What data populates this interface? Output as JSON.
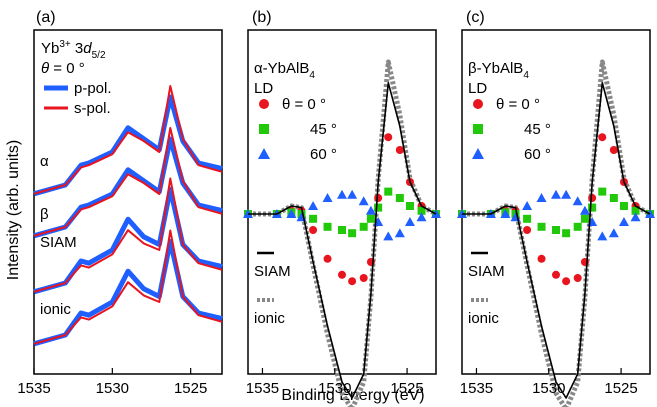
{
  "figure": {
    "ylabel": "Intensity (arb. units)",
    "xlabel": "Binding Energy (eV)"
  },
  "chart_data": [
    {
      "type": "line",
      "panel_label": "(a)",
      "title_prefix": "Yb",
      "title_sup": "3+",
      "title_mid": " 3",
      "title_italic": "d",
      "title_sub": "5/2",
      "theta_var": "θ",
      "theta_rest": " = 0 °",
      "legend": [
        {
          "label": "p-pol.",
          "color": "#1f5fff"
        },
        {
          "label": "s-pol.",
          "color": "#e8141e"
        }
      ],
      "row_labels": [
        "α",
        "β",
        "SIAM",
        "ionic"
      ],
      "xlim": [
        1535,
        1523
      ],
      "xticks": [
        1535,
        1530,
        1525
      ],
      "series": [
        {
          "label": "α",
          "p_pol": {
            "x": [
              1535,
              1533,
              1532,
              1531.5,
              1530,
              1529,
              1528,
              1527,
              1526.3,
              1525.5,
              1524.5,
              1523
            ],
            "y": [
              0.02,
              0.1,
              0.28,
              0.3,
              0.4,
              0.62,
              0.52,
              0.42,
              0.9,
              0.5,
              0.3,
              0.25
            ]
          },
          "s_pol": {
            "x": [
              1535,
              1533,
              1532,
              1531.5,
              1530,
              1529,
              1528,
              1527,
              1526.3,
              1525.5,
              1524.5,
              1523
            ],
            "y": [
              0.02,
              0.1,
              0.26,
              0.28,
              0.38,
              0.58,
              0.5,
              0.4,
              1.0,
              0.52,
              0.28,
              0.22
            ]
          }
        },
        {
          "label": "β",
          "p_pol": {
            "x": [
              1535,
              1533,
              1532,
              1531.5,
              1530,
              1529,
              1528,
              1527,
              1526.3,
              1525.5,
              1524.5,
              1523
            ],
            "y": [
              0.02,
              0.1,
              0.28,
              0.3,
              0.4,
              0.62,
              0.52,
              0.42,
              0.9,
              0.5,
              0.3,
              0.25
            ]
          },
          "s_pol": {
            "x": [
              1535,
              1533,
              1532,
              1531.5,
              1530,
              1529,
              1528,
              1527,
              1526.3,
              1525.5,
              1524.5,
              1523
            ],
            "y": [
              0.02,
              0.1,
              0.26,
              0.28,
              0.38,
              0.58,
              0.5,
              0.4,
              1.0,
              0.52,
              0.28,
              0.22
            ]
          }
        },
        {
          "label": "SIAM",
          "p_pol": {
            "x": [
              1535,
              1533,
              1532,
              1531.5,
              1530,
              1529,
              1528,
              1527,
              1526.3,
              1525.5,
              1524.5,
              1523
            ],
            "y": [
              0.02,
              0.1,
              0.3,
              0.28,
              0.4,
              0.68,
              0.52,
              0.45,
              0.95,
              0.45,
              0.3,
              0.25
            ]
          },
          "s_pol": {
            "x": [
              1535,
              1533,
              1532,
              1531.5,
              1530,
              1529,
              1528,
              1527,
              1526.3,
              1525.5,
              1524.5,
              1523
            ],
            "y": [
              0.02,
              0.1,
              0.26,
              0.24,
              0.36,
              0.58,
              0.46,
              0.4,
              1.05,
              0.45,
              0.28,
              0.22
            ]
          }
        },
        {
          "label": "ionic",
          "p_pol": {
            "x": [
              1535,
              1533,
              1532,
              1531.5,
              1530,
              1529,
              1528,
              1527,
              1526.3,
              1525.5,
              1524.5,
              1523
            ],
            "y": [
              0.02,
              0.1,
              0.3,
              0.28,
              0.4,
              0.68,
              0.52,
              0.45,
              0.95,
              0.45,
              0.3,
              0.25
            ]
          },
          "s_pol": {
            "x": [
              1535,
              1533,
              1532,
              1531.5,
              1530,
              1529,
              1528,
              1527,
              1526.3,
              1525.5,
              1524.5,
              1523
            ],
            "y": [
              0.02,
              0.1,
              0.26,
              0.24,
              0.36,
              0.58,
              0.46,
              0.4,
              1.05,
              0.45,
              0.28,
              0.22
            ]
          }
        }
      ]
    },
    {
      "type": "scatter",
      "panel_label": "(b)",
      "title_main": "α-YbAlB",
      "title_sub": "4",
      "subtitle": "LD",
      "legend": [
        {
          "label": "θ = 0 °",
          "color": "#e8141e",
          "marker": "circle"
        },
        {
          "label": "45 °",
          "color": "#22c80a",
          "marker": "square"
        },
        {
          "label": "60 °",
          "color": "#1f5fff",
          "marker": "triangle"
        }
      ],
      "line_legend": [
        {
          "label": "SIAM",
          "style": "solid"
        },
        {
          "label": "ionic",
          "style": "dotted"
        }
      ],
      "xlim": [
        1536,
        1523
      ],
      "xticks": [
        1535,
        1530,
        1525
      ],
      "ylim": [
        -1.2,
        1.05
      ],
      "series": [
        {
          "name": "θ = 0 °",
          "x": [
            1536,
            1534,
            1533,
            1532.3,
            1531.5,
            1530.5,
            1529.5,
            1528.8,
            1528,
            1527.5,
            1527,
            1526.3,
            1525.5,
            1524.8,
            1524,
            1523
          ],
          "y": [
            0.0,
            0.0,
            0.02,
            0.02,
            -0.1,
            -0.28,
            -0.38,
            -0.42,
            -0.4,
            -0.3,
            0.1,
            0.48,
            0.4,
            0.2,
            0.05,
            0.0
          ]
        },
        {
          "name": "45 °",
          "x": [
            1536,
            1534,
            1533,
            1532.3,
            1531.5,
            1530.5,
            1529.5,
            1528.8,
            1528,
            1527.5,
            1527,
            1526.3,
            1525.5,
            1524.8,
            1524,
            1523
          ],
          "y": [
            0.0,
            0.0,
            0.01,
            0.0,
            -0.03,
            -0.08,
            -0.1,
            -0.12,
            -0.08,
            -0.03,
            0.04,
            0.14,
            0.1,
            0.05,
            0.02,
            0.0
          ]
        },
        {
          "name": "60 °",
          "x": [
            1536,
            1534,
            1533,
            1532.3,
            1531.5,
            1530.5,
            1529.5,
            1528.8,
            1528,
            1527.5,
            1527,
            1526.3,
            1525.5,
            1524.8,
            1524,
            1523
          ],
          "y": [
            0.0,
            0.0,
            0.0,
            -0.02,
            0.05,
            0.1,
            0.12,
            0.12,
            0.08,
            0.02,
            -0.05,
            -0.14,
            -0.12,
            -0.05,
            -0.02,
            0.0
          ]
        }
      ],
      "lines": [
        {
          "name": "SIAM",
          "x": [
            1536,
            1534,
            1533,
            1532.3,
            1531.5,
            1530.5,
            1529.5,
            1528.8,
            1528,
            1527.5,
            1527,
            1526.3,
            1525.5,
            1524.8,
            1524,
            1523
          ],
          "y": [
            0.0,
            0.0,
            0.05,
            0.04,
            -0.3,
            -0.7,
            -1.05,
            -1.15,
            -1.0,
            -0.5,
            0.2,
            0.82,
            0.55,
            0.2,
            0.05,
            0.0
          ]
        },
        {
          "name": "ionic",
          "x": [
            1536,
            1534,
            1533,
            1532.3,
            1531.5,
            1530.5,
            1529.5,
            1528.8,
            1528,
            1527.5,
            1527,
            1526.3,
            1525.5,
            1524.8,
            1524,
            1523
          ],
          "y": [
            0.0,
            0.0,
            0.05,
            0.04,
            -0.32,
            -0.75,
            -1.12,
            -1.22,
            -1.05,
            -0.52,
            0.22,
            0.95,
            0.62,
            0.22,
            0.05,
            0.0
          ]
        }
      ]
    },
    {
      "type": "scatter",
      "panel_label": "(c)",
      "title_main": "β-YbAlB",
      "title_sub": "4",
      "subtitle": "LD",
      "legend": [
        {
          "label": "θ = 0 °",
          "color": "#e8141e",
          "marker": "circle"
        },
        {
          "label": "45 °",
          "color": "#22c80a",
          "marker": "square"
        },
        {
          "label": "60 °",
          "color": "#1f5fff",
          "marker": "triangle"
        }
      ],
      "line_legend": [
        {
          "label": "SIAM",
          "style": "solid"
        },
        {
          "label": "ionic",
          "style": "dotted"
        }
      ],
      "xlim": [
        1536,
        1523
      ],
      "xticks": [
        1535,
        1530,
        1525
      ],
      "ylim": [
        -1.2,
        1.05
      ],
      "series": [
        {
          "name": "θ = 0 °",
          "x": [
            1536,
            1534,
            1533,
            1532.3,
            1531.5,
            1530.5,
            1529.5,
            1528.8,
            1528,
            1527.5,
            1527,
            1526.3,
            1525.5,
            1524.8,
            1524,
            1523
          ],
          "y": [
            0.0,
            0.0,
            0.02,
            0.02,
            -0.1,
            -0.28,
            -0.38,
            -0.42,
            -0.4,
            -0.3,
            0.1,
            0.48,
            0.4,
            0.2,
            0.05,
            0.0
          ]
        },
        {
          "name": "45 °",
          "x": [
            1536,
            1534,
            1533,
            1532.3,
            1531.5,
            1530.5,
            1529.5,
            1528.8,
            1528,
            1527.5,
            1527,
            1526.3,
            1525.5,
            1524.8,
            1524,
            1523
          ],
          "y": [
            0.0,
            0.0,
            0.01,
            0.0,
            -0.03,
            -0.08,
            -0.1,
            -0.12,
            -0.08,
            -0.03,
            0.04,
            0.14,
            0.1,
            0.05,
            0.02,
            0.0
          ]
        },
        {
          "name": "60 °",
          "x": [
            1536,
            1534,
            1533,
            1532.3,
            1531.5,
            1530.5,
            1529.5,
            1528.8,
            1528,
            1527.5,
            1527,
            1526.3,
            1525.5,
            1524.8,
            1524,
            1523
          ],
          "y": [
            0.0,
            0.0,
            0.0,
            -0.02,
            0.05,
            0.1,
            0.12,
            0.12,
            0.08,
            0.02,
            -0.05,
            -0.14,
            -0.12,
            -0.05,
            -0.02,
            0.0
          ]
        }
      ],
      "lines": [
        {
          "name": "SIAM",
          "x": [
            1536,
            1534,
            1533,
            1532.3,
            1531.5,
            1530.5,
            1529.5,
            1528.8,
            1528,
            1527.5,
            1527,
            1526.3,
            1525.5,
            1524.8,
            1524,
            1523
          ],
          "y": [
            0.0,
            0.0,
            0.05,
            0.04,
            -0.3,
            -0.7,
            -1.05,
            -1.15,
            -1.0,
            -0.5,
            0.2,
            0.82,
            0.55,
            0.2,
            0.05,
            0.0
          ]
        },
        {
          "name": "ionic",
          "x": [
            1536,
            1534,
            1533,
            1532.3,
            1531.5,
            1530.5,
            1529.5,
            1528.8,
            1528,
            1527.5,
            1527,
            1526.3,
            1525.5,
            1524.8,
            1524,
            1523
          ],
          "y": [
            0.0,
            0.0,
            0.05,
            0.04,
            -0.32,
            -0.75,
            -1.12,
            -1.22,
            -1.05,
            -0.52,
            0.22,
            0.95,
            0.62,
            0.22,
            0.05,
            0.0
          ]
        }
      ]
    }
  ]
}
